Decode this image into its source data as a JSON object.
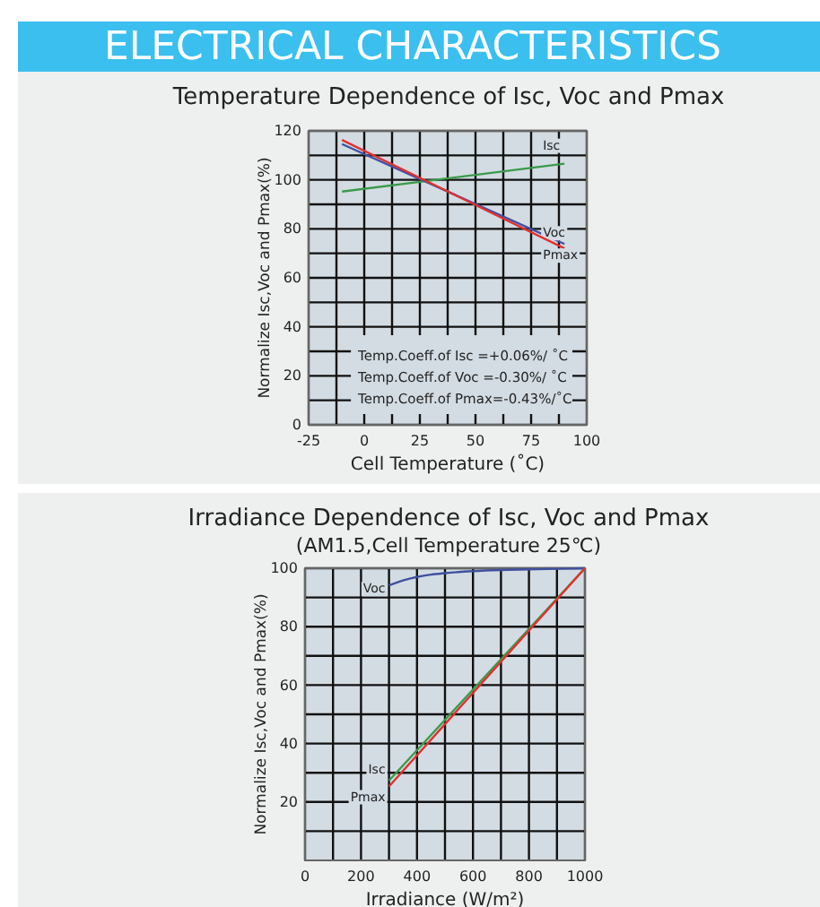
{
  "chart_data": [
    {
      "type": "other",
      "title": "ELECTRICAL CHARACTERISTICS"
    },
    {
      "type": "line",
      "title": "Temperature Dependence of Isc, Voc and Pmax",
      "xlabel": "Cell Temperature (˚C)",
      "ylabel": "Normalize Isc,Voc and Pmax(%)",
      "xlim": [
        -25,
        100
      ],
      "xticks": [
        -25,
        {
          "value": -12.5,
          "label": null
        },
        0,
        {
          "value": 12.5,
          "label": null
        },
        25,
        {
          "value": 37.5,
          "label": null
        },
        50,
        {
          "value": 62.5,
          "label": null
        },
        75,
        {
          "value": 87.5,
          "label": null
        },
        100
      ],
      "ylim": [
        0,
        120
      ],
      "yticks": [
        0,
        {
          "value": 10,
          "label": null
        },
        20,
        {
          "value": 30,
          "label": null
        },
        40,
        {
          "value": 50,
          "label": null
        },
        60,
        {
          "value": 70,
          "label": null
        },
        80,
        {
          "value": 90,
          "label": null
        },
        100,
        {
          "value": 110,
          "label": null
        },
        120
      ],
      "grid": true,
      "line_style": "solid",
      "series": [
        {
          "name": "Isc",
          "color": "#3a9a4a",
          "x": [
            -10,
            90
          ],
          "values": [
            95.2,
            106.6
          ]
        },
        {
          "name": "Voc",
          "color": "#4050a0",
          "x": [
            -10,
            90
          ],
          "values": [
            114.6,
            73.8
          ]
        },
        {
          "name": "Pmax",
          "color": "#e03030",
          "x": [
            -10,
            90
          ],
          "values": [
            116.3,
            72
          ]
        }
      ],
      "annotations": [
        "Temp.Coeff.of Isc =+0.06%/ ˚C",
        "Temp.Coeff.of Voc =-0.30%/ ˚C",
        "Temp.Coeff.of Pmax=-0.43%/˚C"
      ]
    },
    {
      "type": "line",
      "title": "Irradiance Dependence of Isc, Voc and Pmax",
      "subtitle": "(AM1.5,Cell Temperature 25℃)",
      "xlabel": "Irradiance (W/m²)",
      "ylabel": "Normalize Isc,Voc and Pmax(%)",
      "xlim": [
        0,
        1000
      ],
      "xticks": [
        0,
        {
          "value": 100,
          "label": null
        },
        200,
        {
          "value": 300,
          "label": null
        },
        400,
        {
          "value": 500,
          "label": null
        },
        600,
        {
          "value": 700,
          "label": null
        },
        800,
        {
          "value": 900,
          "label": null
        },
        1000
      ],
      "ylim": [
        0,
        100
      ],
      "yticks": [
        {
          "value": 10,
          "label": null
        },
        20,
        {
          "value": 30,
          "label": null
        },
        40,
        {
          "value": 50,
          "label": null
        },
        60,
        {
          "value": 70,
          "label": null
        },
        80,
        {
          "value": 90,
          "label": null
        },
        100
      ],
      "grid": true,
      "line_style": "solid",
      "series": [
        {
          "name": "Voc",
          "color": "#4050a0",
          "x": [
            300,
            350,
            400,
            450,
            500,
            600,
            700,
            800,
            900,
            1000
          ],
          "values": [
            94.1,
            95.8,
            97,
            97.8,
            98.3,
            99,
            99.4,
            99.6,
            99.8,
            100
          ]
        },
        {
          "name": "Isc",
          "color": "#3a9a4a",
          "x": [
            300,
            1000
          ],
          "values": [
            27.3,
            100
          ]
        },
        {
          "name": "Pmax",
          "color": "#e03030",
          "x": [
            300,
            1000
          ],
          "values": [
            25.3,
            100
          ]
        }
      ]
    }
  ]
}
